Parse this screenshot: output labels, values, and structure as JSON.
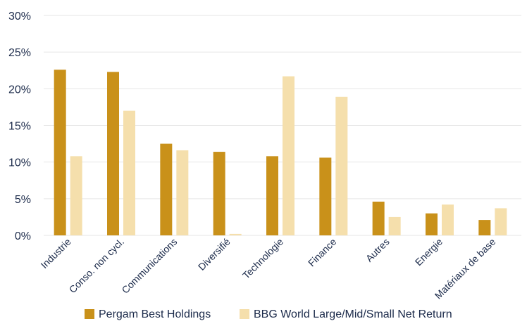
{
  "chart_data": {
    "type": "bar",
    "categories": [
      "Industrie",
      "Conso. non cycl.",
      "Communications",
      "Diversifié",
      "Technologie",
      "Finance",
      "Autres",
      "Energie",
      "Matériaux de base"
    ],
    "series": [
      {
        "name": "Pergam Best Holdings",
        "color": "#c9911a",
        "values": [
          22.6,
          22.3,
          12.5,
          11.4,
          10.8,
          10.6,
          4.6,
          3.0,
          2.1
        ]
      },
      {
        "name": "BBG World Large/Mid/Small Net Return",
        "color": "#f5dfac",
        "values": [
          10.8,
          17.0,
          11.6,
          0.2,
          21.7,
          18.9,
          2.5,
          4.2,
          3.7
        ]
      }
    ],
    "y_ticks": [
      "0%",
      "5%",
      "10%",
      "15%",
      "20%",
      "25%",
      "30%"
    ],
    "ylim": [
      0,
      30
    ],
    "grid": true,
    "grid_color": "#e6e6e6",
    "legend_position": "bottom",
    "title": "",
    "xlabel": "",
    "ylabel": ""
  }
}
